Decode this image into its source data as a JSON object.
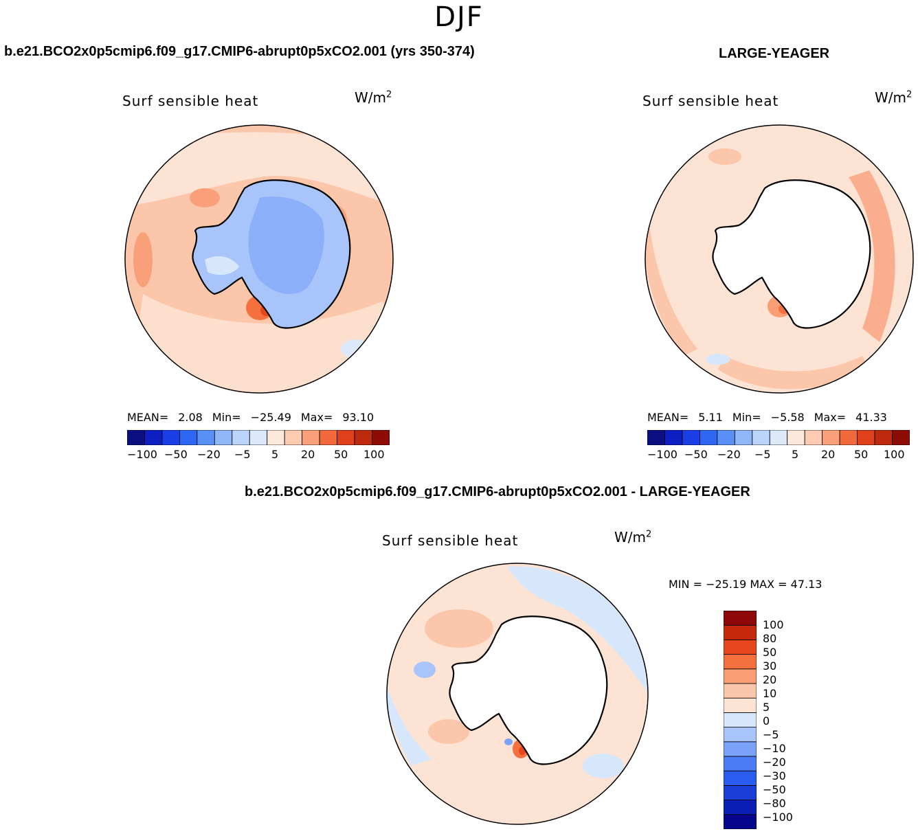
{
  "figure": {
    "season": "DJF"
  },
  "panel_left": {
    "case_title": "b.e21.BCO2x0p5cmip6.f09_g17.CMIP6-abrupt0p5xCO2.001 (yrs 350-374)",
    "variable": "Surf sensible heat",
    "units_base": "W/m",
    "units_exp": "2",
    "mean_label": "MEAN=",
    "mean_value": "2.08",
    "min_label": "Min=",
    "min_value": "−25.49",
    "max_label": "Max=",
    "max_value": "93.10"
  },
  "panel_right": {
    "case_title": "LARGE-YEAGER",
    "variable": "Surf sensible heat",
    "units_base": "W/m",
    "units_exp": "2",
    "mean_label": "MEAN=",
    "mean_value": "5.11",
    "min_label": "Min=",
    "min_value": "−5.58",
    "max_label": "Max=",
    "max_value": "41.33"
  },
  "panel_diff": {
    "case_title": "b.e21.BCO2x0p5cmip6.f09_g17.CMIP6-abrupt0p5xCO2.001 - LARGE-YEAGER",
    "variable": "Surf sensible heat",
    "units_base": "W/m",
    "units_exp": "2",
    "minmax_text": "MIN = −25.19 MAX =  47.13"
  },
  "colorbar_main": {
    "colors": [
      "#0a0f82",
      "#0d1fc2",
      "#1a3fe6",
      "#2e68f2",
      "#5a90f6",
      "#8fb6f8",
      "#bad4fa",
      "#dce9fb",
      "#fde9dc",
      "#fccbb1",
      "#f9a07a",
      "#f26a3c",
      "#e0401b",
      "#be2a0e",
      "#8e0c06"
    ],
    "ticks": [
      "−100",
      "−50",
      "−20",
      "−5",
      "5",
      "20",
      "50",
      "100"
    ]
  },
  "colorbar_diff": {
    "colors": [
      "#06068c",
      "#0a1db4",
      "#1b3ed8",
      "#2a5cf0",
      "#4b7cf5",
      "#7aa2f8",
      "#a8c4fa",
      "#d6e6fb",
      "#fde3d4",
      "#fcc6aa",
      "#f99e74",
      "#f4713f",
      "#e8461f",
      "#c62a0c",
      "#8e0808"
    ],
    "labels": [
      "100",
      "80",
      "50",
      "30",
      "20",
      "10",
      "5",
      "0",
      "−5",
      "−10",
      "−20",
      "−30",
      "−50",
      "−80",
      "−100"
    ]
  },
  "chart_data": [
    {
      "type": "heatmap",
      "title": "Surf sensible heat",
      "subtitle": "b.e21.BCO2x0p5cmip6.f09_g17.CMIP6-abrupt0p5xCO2.001 (yrs 350-374)",
      "units": "W/m2",
      "projection": "south polar stereographic",
      "levels": [
        -100,
        -50,
        -20,
        -5,
        5,
        20,
        50,
        100
      ],
      "mean": 2.08,
      "min": -25.49,
      "max": 93.1
    },
    {
      "type": "heatmap",
      "title": "Surf sensible heat",
      "subtitle": "LARGE-YEAGER",
      "units": "W/m2",
      "projection": "south polar stereographic",
      "levels": [
        -100,
        -50,
        -20,
        -5,
        5,
        20,
        50,
        100
      ],
      "mean": 5.11,
      "min": -5.58,
      "max": 41.33
    },
    {
      "type": "heatmap",
      "title": "Surf sensible heat",
      "subtitle": "b.e21.BCO2x0p5cmip6.f09_g17.CMIP6-abrupt0p5xCO2.001 - LARGE-YEAGER",
      "units": "W/m2",
      "projection": "south polar stereographic",
      "levels": [
        -100,
        -80,
        -50,
        -30,
        -20,
        -10,
        -5,
        0,
        5,
        10,
        20,
        30,
        50,
        80,
        100
      ],
      "min": -25.19,
      "max": 47.13
    }
  ]
}
